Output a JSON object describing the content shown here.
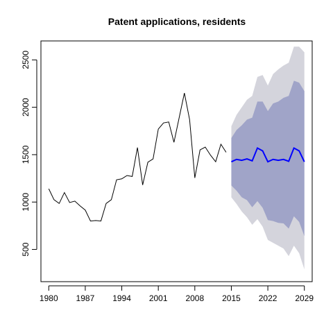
{
  "chart_data": {
    "type": "line",
    "title": "Patent applications, residents",
    "xlabel": "",
    "ylabel": "",
    "xlim": [
      1978.5,
      2030.5
    ],
    "ylim": [
      160,
      2700
    ],
    "x_ticks": [
      1980,
      1987,
      1994,
      2001,
      2008,
      2015,
      2022,
      2029
    ],
    "y_ticks": [
      500,
      1000,
      1500,
      2000,
      2500
    ],
    "grid": false,
    "legend": "none",
    "colors": {
      "history": "#000000",
      "forecast": "#0000ff",
      "band_80": "#a0a4c8",
      "band_95": "#d4d4dc"
    },
    "series": [
      {
        "role": "history",
        "x": [
          1980,
          1981,
          1982,
          1983,
          1984,
          1985,
          1986,
          1987,
          1988,
          1989,
          1990,
          1991,
          1992,
          1993,
          1994,
          1995,
          1996,
          1997,
          1998,
          1999,
          2000,
          2001,
          2002,
          2003,
          2004,
          2005,
          2006,
          2007,
          2008,
          2009,
          2010,
          2011,
          2012,
          2013,
          2014
        ],
        "values": [
          1140,
          1025,
          985,
          1100,
          995,
          1010,
          960,
          915,
          800,
          805,
          800,
          985,
          1025,
          1235,
          1245,
          1280,
          1270,
          1575,
          1180,
          1420,
          1455,
          1770,
          1835,
          1845,
          1630,
          1890,
          2150,
          1870,
          1255,
          1550,
          1580,
          1495,
          1425,
          1610,
          1525
        ]
      },
      {
        "role": "forecast",
        "x": [
          2015,
          2016,
          2017,
          2018,
          2019,
          2020,
          2021,
          2022,
          2023,
          2024,
          2025,
          2026,
          2027,
          2028,
          2029
        ],
        "values": [
          1425,
          1450,
          1440,
          1455,
          1435,
          1570,
          1540,
          1425,
          1450,
          1440,
          1450,
          1430,
          1570,
          1540,
          1425
        ],
        "lo80": [
          1175,
          1120,
          1050,
          1020,
          945,
          1010,
          940,
          810,
          800,
          780,
          775,
          720,
          850,
          790,
          640
        ],
        "hi80": [
          1675,
          1760,
          1810,
          1870,
          1890,
          2060,
          2060,
          1960,
          2040,
          2060,
          2100,
          2120,
          2280,
          2260,
          2170
        ],
        "lo95": [
          1050,
          980,
          900,
          840,
          760,
          820,
          740,
          600,
          570,
          540,
          510,
          430,
          540,
          460,
          290
        ],
        "hi95": [
          1800,
          1920,
          2000,
          2080,
          2120,
          2320,
          2340,
          2230,
          2350,
          2400,
          2440,
          2470,
          2640,
          2640,
          2580
        ]
      }
    ]
  }
}
